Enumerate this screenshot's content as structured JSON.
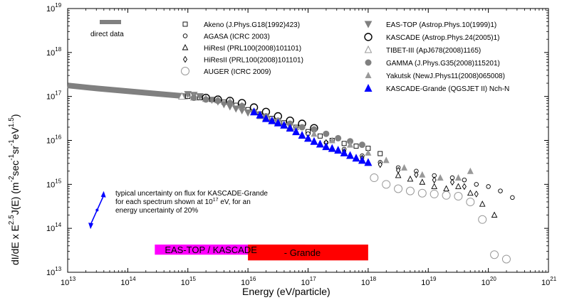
{
  "chart_data": {
    "type": "scatter",
    "title": "",
    "xlabel": "Energy     (eV/particle)",
    "ylabel_parts": [
      "dI/dE x  E",
      "2.5",
      "J(E) (m",
      "-2",
      "sec",
      "-1",
      "sr",
      "-1",
      "eV",
      "1.5",
      ")"
    ],
    "xscale": "log",
    "yscale": "log",
    "xlim_exp": [
      13,
      21
    ],
    "ylim_exp": [
      13,
      19
    ],
    "x_ticks": [
      {
        "base": "10",
        "exp": "13"
      },
      {
        "base": "10",
        "exp": "14"
      },
      {
        "base": "10",
        "exp": "15"
      },
      {
        "base": "10",
        "exp": "16"
      },
      {
        "base": "10",
        "exp": "17"
      },
      {
        "base": "10",
        "exp": "18"
      },
      {
        "base": "10",
        "exp": "19"
      },
      {
        "base": "10",
        "exp": "20"
      },
      {
        "base": "10",
        "exp": "21"
      }
    ],
    "y_ticks": [
      {
        "base": "10",
        "exp": "13"
      },
      {
        "base": "10",
        "exp": "14"
      },
      {
        "base": "10",
        "exp": "15"
      },
      {
        "base": "10",
        "exp": "16"
      },
      {
        "base": "10",
        "exp": "17"
      },
      {
        "base": "10",
        "exp": "18"
      },
      {
        "base": "10",
        "exp": "19"
      }
    ],
    "direct_data": {
      "label": "direct data",
      "color": "#808080",
      "points": [
        [
          13.0,
          17.25
        ],
        [
          13.5,
          17.18
        ],
        [
          14.0,
          17.12
        ],
        [
          14.5,
          17.06
        ],
        [
          15.0,
          17.0
        ]
      ]
    },
    "series": [
      {
        "name": "Akeno (J.Phys.G18(1992)423)",
        "marker": "square-open",
        "color": "#000000",
        "points": [
          [
            15.0,
            17.0
          ],
          [
            15.2,
            16.97
          ],
          [
            15.4,
            16.93
          ],
          [
            15.6,
            16.87
          ],
          [
            15.8,
            16.8
          ],
          [
            16.0,
            16.7
          ],
          [
            16.2,
            16.6
          ],
          [
            16.4,
            16.5
          ],
          [
            16.6,
            16.4
          ],
          [
            16.8,
            16.3
          ],
          [
            17.0,
            16.2
          ],
          [
            17.2,
            16.1
          ],
          [
            17.4,
            16.0
          ],
          [
            17.6,
            15.93
          ],
          [
            17.8,
            15.87
          ],
          [
            18.0,
            15.82
          ],
          [
            18.2,
            15.7
          ]
        ]
      },
      {
        "name": "AGASA (ICRC 2003)",
        "marker": "circle-small",
        "color": "#000000",
        "points": [
          [
            17.0,
            16.15
          ],
          [
            17.3,
            15.95
          ],
          [
            17.6,
            15.8
          ],
          [
            17.9,
            15.65
          ],
          [
            18.2,
            15.5
          ],
          [
            18.5,
            15.38
          ],
          [
            18.8,
            15.3
          ],
          [
            19.1,
            15.2
          ],
          [
            19.4,
            15.15
          ],
          [
            19.6,
            15.1
          ],
          [
            19.8,
            15.0
          ],
          [
            20.0,
            14.95
          ],
          [
            20.2,
            14.85
          ],
          [
            20.4,
            14.7
          ]
        ]
      },
      {
        "name": "HiResI (PRL100(2008)101101)",
        "marker": "triangle-open",
        "color": "#000000",
        "points": [
          [
            18.5,
            15.2
          ],
          [
            18.7,
            15.12
          ],
          [
            18.9,
            15.05
          ],
          [
            19.1,
            14.95
          ],
          [
            19.3,
            14.9
          ],
          [
            19.5,
            14.95
          ],
          [
            19.7,
            14.8
          ],
          [
            19.9,
            14.55
          ],
          [
            20.1,
            14.3
          ]
        ]
      },
      {
        "name": "HiResII (PRL100(2008)101101)",
        "marker": "diamond-open",
        "color": "#000000",
        "points": [
          [
            17.3,
            15.95
          ],
          [
            17.6,
            15.75
          ],
          [
            17.9,
            15.6
          ],
          [
            18.2,
            15.45
          ],
          [
            18.5,
            15.32
          ],
          [
            18.8,
            15.22
          ],
          [
            19.1,
            15.1
          ],
          [
            19.4,
            15.05
          ],
          [
            19.6,
            14.95
          ],
          [
            19.8,
            14.78
          ]
        ]
      },
      {
        "name": "AUGER (ICRC 2009)",
        "marker": "circle-large",
        "color": "#999999",
        "points": [
          [
            18.1,
            15.15
          ],
          [
            18.3,
            15.0
          ],
          [
            18.5,
            14.9
          ],
          [
            18.7,
            14.85
          ],
          [
            18.9,
            14.8
          ],
          [
            19.1,
            14.78
          ],
          [
            19.3,
            14.75
          ],
          [
            19.5,
            14.73
          ],
          [
            19.7,
            14.6
          ],
          [
            19.9,
            14.2
          ],
          [
            20.1,
            13.4
          ],
          [
            20.3,
            13.3
          ]
        ]
      },
      {
        "name": "EAS-TOP (Astrop.Phys.10(1999)1)",
        "marker": "triangle-down",
        "color": "#808080",
        "points": [
          [
            15.0,
            17.05
          ],
          [
            15.1,
            17.03
          ],
          [
            15.2,
            17.0
          ],
          [
            15.3,
            16.95
          ],
          [
            15.4,
            16.92
          ],
          [
            15.5,
            16.88
          ],
          [
            15.6,
            16.82
          ],
          [
            15.7,
            16.77
          ],
          [
            15.8,
            16.72
          ],
          [
            15.9,
            16.68
          ],
          [
            16.0,
            16.63
          ]
        ]
      },
      {
        "name": "KASCADE (Astrop.Phys.24(2005)1)",
        "marker": "circle-open",
        "color": "#000000",
        "points": [
          [
            15.3,
            16.97
          ],
          [
            15.5,
            16.93
          ],
          [
            15.7,
            16.9
          ],
          [
            15.9,
            16.85
          ],
          [
            16.1,
            16.75
          ],
          [
            16.3,
            16.65
          ],
          [
            16.5,
            16.55
          ],
          [
            16.7,
            16.45
          ],
          [
            16.9,
            16.38
          ],
          [
            17.1,
            16.28
          ]
        ]
      },
      {
        "name": "TIBET-III (ApJ678(2008)1165)",
        "marker": "triangle-open-gray",
        "color": "#999999",
        "points": [
          [
            14.9,
            17.0
          ],
          [
            15.1,
            16.98
          ],
          [
            15.3,
            16.95
          ],
          [
            15.5,
            16.92
          ],
          [
            15.7,
            16.88
          ],
          [
            15.9,
            16.78
          ],
          [
            16.1,
            16.65
          ],
          [
            16.3,
            16.52
          ],
          [
            16.5,
            16.42
          ],
          [
            16.7,
            16.3
          ]
        ]
      },
      {
        "name": "GAMMA (J.Phys.G35(2008)115201)",
        "marker": "circle-filled",
        "color": "#808080",
        "points": [
          [
            15.1,
            16.97
          ],
          [
            15.3,
            16.93
          ],
          [
            15.5,
            16.9
          ],
          [
            15.7,
            16.85
          ],
          [
            15.9,
            16.78
          ],
          [
            16.1,
            16.65
          ],
          [
            16.3,
            16.55
          ],
          [
            16.5,
            16.45
          ],
          [
            16.7,
            16.38
          ],
          [
            16.9,
            16.3
          ],
          [
            17.1,
            16.25
          ],
          [
            17.3,
            16.15
          ],
          [
            17.5,
            16.05
          ],
          [
            17.7,
            15.98
          ],
          [
            17.9,
            15.9
          ]
        ]
      },
      {
        "name": "Yakutsk (NewJ.Phys11(2008)065008)",
        "marker": "triangle-filled-gray",
        "color": "#999999",
        "points": [
          [
            16.2,
            16.55
          ],
          [
            16.5,
            16.45
          ],
          [
            16.8,
            16.3
          ],
          [
            17.1,
            16.15
          ],
          [
            17.4,
            16.0
          ],
          [
            17.7,
            15.9
          ],
          [
            18.0,
            15.72
          ],
          [
            18.3,
            15.55
          ],
          [
            18.6,
            15.38
          ],
          [
            18.9,
            15.22
          ],
          [
            19.2,
            15.15
          ],
          [
            19.5,
            15.15
          ],
          [
            19.7,
            15.3
          ]
        ]
      },
      {
        "name": "KASCADE-Grande (QGSJET II) Nch-N",
        "marker": "triangle-filled-blue",
        "color": "#0000ff",
        "points": [
          [
            16.1,
            16.65
          ],
          [
            16.2,
            16.58
          ],
          [
            16.3,
            16.5
          ],
          [
            16.4,
            16.45
          ],
          [
            16.5,
            16.4
          ],
          [
            16.6,
            16.35
          ],
          [
            16.7,
            16.28
          ],
          [
            16.8,
            16.2
          ],
          [
            16.9,
            16.12
          ],
          [
            17.0,
            16.05
          ],
          [
            17.1,
            15.98
          ],
          [
            17.2,
            15.92
          ],
          [
            17.3,
            15.86
          ],
          [
            17.4,
            15.82
          ],
          [
            17.5,
            15.78
          ],
          [
            17.6,
            15.72
          ],
          [
            17.7,
            15.66
          ],
          [
            17.8,
            15.6
          ],
          [
            17.9,
            15.55
          ],
          [
            18.0,
            15.5
          ]
        ]
      }
    ],
    "annotations": {
      "uncertainty_note": [
        "typical uncertainty on flux for KASCADE-Grande",
        "for each spectrum shown at 10",
        "17",
        " eV, for an",
        "energy uncertainty of 20%"
      ],
      "bands": [
        {
          "label": "EAS-TOP / KASCADE",
          "color": "#ff00ff",
          "x_range_exp": [
            14.45,
            16.95
          ],
          "y_range_exp": [
            13.4,
            13.63
          ]
        },
        {
          "label": "- Grande",
          "color": "#ff0000",
          "x_range_exp": [
            16.0,
            18.0
          ],
          "y_range_exp": [
            13.27,
            13.63
          ]
        }
      ]
    }
  }
}
